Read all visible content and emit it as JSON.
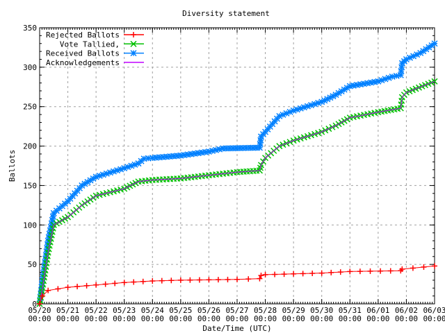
{
  "chart_data": {
    "type": "line",
    "title": "Diversity statement",
    "xlabel": "Date/Time (UTC)",
    "ylabel": "Ballots",
    "ylim": [
      0,
      350
    ],
    "yticks": [
      0,
      50,
      100,
      150,
      200,
      250,
      300,
      350
    ],
    "xlim": [
      "05/20 00:00",
      "06/03 00:00"
    ],
    "xticks": [
      [
        "05/20",
        "00:00"
      ],
      [
        "05/21",
        "00:00"
      ],
      [
        "05/22",
        "00:00"
      ],
      [
        "05/23",
        "00:00"
      ],
      [
        "05/24",
        "00:00"
      ],
      [
        "05/25",
        "00:00"
      ],
      [
        "05/26",
        "00:00"
      ],
      [
        "05/27",
        "00:00"
      ],
      [
        "05/28",
        "00:00"
      ],
      [
        "05/29",
        "00:00"
      ],
      [
        "05/30",
        "00:00"
      ],
      [
        "05/31",
        "00:00"
      ],
      [
        "06/01",
        "00:00"
      ],
      [
        "06/02",
        "00:00"
      ],
      [
        "06/03",
        "00:00"
      ]
    ],
    "grid": true,
    "legend_position": "top-left",
    "series": [
      {
        "name": "Rejected Ballots",
        "color": "#ff0000",
        "marker": "plus",
        "points": [
          [
            "05/20 00:00",
            0
          ],
          [
            "05/20 02:24",
            10
          ],
          [
            "05/20 07:12",
            17
          ],
          [
            "05/21 00:00",
            21
          ],
          [
            "05/22 00:00",
            24
          ],
          [
            "05/23 00:00",
            27
          ],
          [
            "05/24 00:00",
            29
          ],
          [
            "05/25 00:00",
            30
          ],
          [
            "05/27 00:00",
            31
          ],
          [
            "05/27 19:12",
            32
          ],
          [
            "05/27 20:24",
            36
          ],
          [
            "05/28 00:00",
            37
          ],
          [
            "05/30 00:00",
            39
          ],
          [
            "05/31 00:00",
            41
          ],
          [
            "06/01 19:12",
            42
          ],
          [
            "06/01 20:24",
            44
          ],
          [
            "06/03 00:00",
            48
          ]
        ]
      },
      {
        "name": "Vote Tallied,",
        "color": "#00c000",
        "marker": "cross",
        "points": [
          [
            "05/20 00:00",
            0
          ],
          [
            "05/20 02:24",
            20
          ],
          [
            "05/20 07:12",
            65
          ],
          [
            "05/20 12:00",
            100
          ],
          [
            "05/21 00:00",
            110
          ],
          [
            "05/21 12:00",
            125
          ],
          [
            "05/22 00:00",
            137
          ],
          [
            "05/23 00:00",
            146
          ],
          [
            "05/23 12:00",
            155
          ],
          [
            "05/24 00:00",
            157
          ],
          [
            "05/25 00:00",
            159
          ],
          [
            "05/26 00:00",
            163
          ],
          [
            "05/27 00:00",
            167
          ],
          [
            "05/27 19:12",
            169
          ],
          [
            "05/27 20:24",
            176
          ],
          [
            "05/28 00:00",
            185
          ],
          [
            "05/28 12:00",
            200
          ],
          [
            "05/29 00:00",
            207
          ],
          [
            "05/30 00:00",
            218
          ],
          [
            "05/30 12:00",
            226
          ],
          [
            "05/31 00:00",
            236
          ],
          [
            "06/01 00:00",
            243
          ],
          [
            "06/01 19:12",
            248
          ],
          [
            "06/01 20:24",
            262
          ],
          [
            "06/02 00:00",
            268
          ],
          [
            "06/03 00:00",
            282
          ]
        ]
      },
      {
        "name": "Received Ballots",
        "color": "#0080ff",
        "marker": "star",
        "points": [
          [
            "05/20 00:00",
            0
          ],
          [
            "05/20 02:24",
            30
          ],
          [
            "05/20 07:12",
            80
          ],
          [
            "05/20 12:00",
            115
          ],
          [
            "05/21 00:00",
            130
          ],
          [
            "05/21 12:00",
            150
          ],
          [
            "05/22 00:00",
            161
          ],
          [
            "05/23 00:00",
            172
          ],
          [
            "05/23 12:00",
            178
          ],
          [
            "05/23 16:48",
            184
          ],
          [
            "05/24 00:00",
            185
          ],
          [
            "05/25 00:00",
            188
          ],
          [
            "05/26 00:00",
            193
          ],
          [
            "05/26 12:00",
            197
          ],
          [
            "05/27 19:12",
            198
          ],
          [
            "05/27 20:24",
            212
          ],
          [
            "05/28 00:00",
            218
          ],
          [
            "05/28 12:00",
            238
          ],
          [
            "05/29 00:00",
            245
          ],
          [
            "05/30 00:00",
            256
          ],
          [
            "05/30 12:00",
            265
          ],
          [
            "05/31 00:00",
            276
          ],
          [
            "06/01 00:00",
            282
          ],
          [
            "06/01 12:00",
            288
          ],
          [
            "06/01 19:12",
            290
          ],
          [
            "06/01 20:24",
            305
          ],
          [
            "06/02 00:00",
            310
          ],
          [
            "06/02 12:00",
            318
          ],
          [
            "06/03 00:00",
            330
          ]
        ]
      },
      {
        "name": "Acknowledgements",
        "color": "#c000ff",
        "marker": "none",
        "points": [
          [
            "05/20 00:00",
            0
          ],
          [
            "05/20 02:24",
            20
          ],
          [
            "05/20 07:12",
            65
          ],
          [
            "05/20 12:00",
            100
          ],
          [
            "05/21 00:00",
            110
          ],
          [
            "05/21 12:00",
            125
          ],
          [
            "05/22 00:00",
            137
          ],
          [
            "05/23 00:00",
            146
          ],
          [
            "05/23 12:00",
            155
          ],
          [
            "05/24 00:00",
            157
          ],
          [
            "05/25 00:00",
            159
          ],
          [
            "05/26 00:00",
            163
          ],
          [
            "05/27 00:00",
            167
          ],
          [
            "05/27 19:12",
            169
          ],
          [
            "05/27 20:24",
            176
          ],
          [
            "05/28 00:00",
            185
          ],
          [
            "05/28 12:00",
            200
          ],
          [
            "05/29 00:00",
            207
          ],
          [
            "05/30 00:00",
            218
          ],
          [
            "05/30 12:00",
            226
          ],
          [
            "05/31 00:00",
            236
          ],
          [
            "06/01 00:00",
            243
          ],
          [
            "06/01 19:12",
            248
          ],
          [
            "06/01 20:24",
            262
          ],
          [
            "06/02 00:00",
            268
          ],
          [
            "06/03 00:00",
            282
          ]
        ]
      }
    ]
  }
}
